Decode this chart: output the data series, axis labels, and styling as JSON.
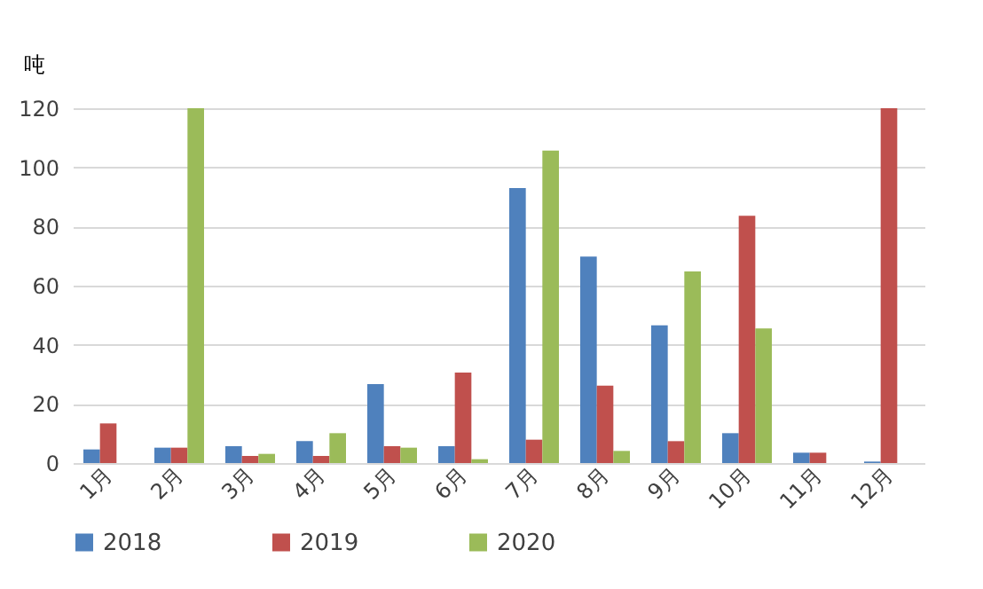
{
  "chart_data": {
    "type": "bar",
    "ylabel": "吨",
    "categories": [
      "1月",
      "2月",
      "3月",
      "4月",
      "5月",
      "6月",
      "7月",
      "8月",
      "9月",
      "10月",
      "11月",
      "12月"
    ],
    "series": [
      {
        "name": "2018",
        "color": "#4f81bd",
        "values": [
          4.6,
          5.2,
          5.7,
          7.4,
          26.7,
          5.7,
          93,
          69.8,
          46.6,
          10.1,
          3.5,
          0.5
        ]
      },
      {
        "name": "2019",
        "color": "#c0504d",
        "values": [
          13.4,
          5.2,
          2.4,
          2.4,
          5.7,
          30.6,
          7.9,
          26.2,
          7.4,
          83.6,
          3.5,
          120
        ]
      },
      {
        "name": "2020",
        "color": "#9bbb59",
        "values": [
          0,
          120,
          3.1,
          10.1,
          5.2,
          1.3,
          105.7,
          4.1,
          64.8,
          45.5,
          0,
          0
        ]
      }
    ],
    "ylim": [
      0,
      120
    ],
    "yticks": [
      0,
      20,
      40,
      60,
      80,
      100,
      120
    ],
    "grid": "y",
    "legend": "bottom"
  }
}
